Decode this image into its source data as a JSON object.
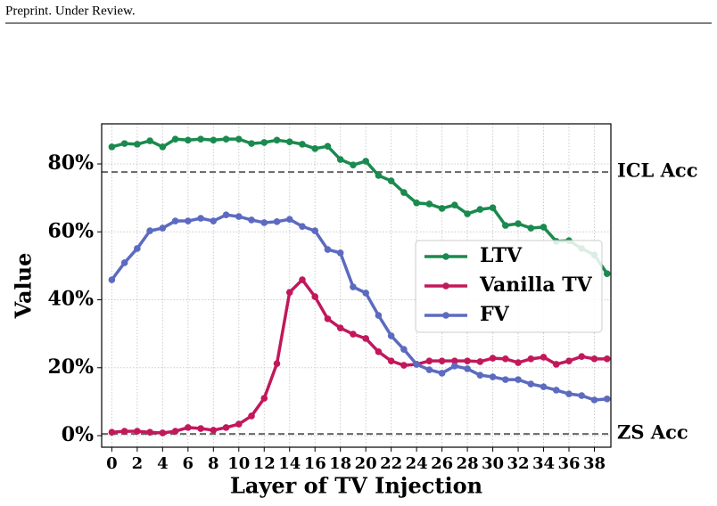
{
  "header": "Preprint. Under Review.",
  "chart_data": {
    "type": "line",
    "xlabel": "Layer of TV Injection",
    "ylabel": "Value",
    "x": [
      0,
      1,
      2,
      3,
      4,
      5,
      6,
      7,
      8,
      9,
      10,
      11,
      12,
      13,
      14,
      15,
      16,
      17,
      18,
      19,
      20,
      21,
      22,
      23,
      24,
      25,
      26,
      27,
      28,
      29,
      30,
      31,
      32,
      33,
      34,
      35,
      36,
      37,
      38,
      39
    ],
    "series": [
      {
        "name": "LTV",
        "color": "#1a8a4e",
        "values": [
          85,
          86,
          85.8,
          86.8,
          85,
          87.3,
          87,
          87.3,
          87,
          87.3,
          87.3,
          86,
          86.3,
          87,
          86.5,
          85.8,
          84.5,
          85.2,
          81.3,
          79.7,
          80.8,
          76.6,
          75,
          71.6,
          68.5,
          68.2,
          66.9,
          67.9,
          65.3,
          66.6,
          67.1,
          61.9,
          62.4,
          61.1,
          61.4,
          57.2,
          57.4,
          55.1,
          53.2,
          47.7
        ]
      },
      {
        "name": "Vanilla TV",
        "color": "#c2185b",
        "values": [
          1,
          1.3,
          1.3,
          1,
          0.8,
          1.3,
          2.4,
          2.1,
          1.6,
          2.4,
          3.4,
          5.8,
          11,
          21.2,
          42.2,
          45.9,
          40.9,
          34.4,
          31.7,
          29.9,
          28.6,
          24.7,
          22,
          20.7,
          21,
          22,
          22,
          22,
          22,
          21.8,
          22.8,
          22.6,
          21.5,
          22.6,
          23.1,
          21,
          22,
          23.3,
          22.6,
          22.6
        ]
      },
      {
        "name": "FV",
        "color": "#5c6bc0",
        "values": [
          45.9,
          50.9,
          55.1,
          60.3,
          61.1,
          63.2,
          63.2,
          64,
          63.2,
          65,
          64.5,
          63.5,
          62.7,
          63,
          63.7,
          61.6,
          60.3,
          54.8,
          53.8,
          43.8,
          42,
          35.4,
          29.4,
          25.4,
          21,
          19.4,
          18.4,
          20.5,
          19.7,
          17.8,
          17.3,
          16.5,
          16.5,
          15.2,
          14.4,
          13.4,
          12.3,
          11.8,
          10.5,
          10.8
        ]
      }
    ],
    "hlines": [
      {
        "value": 77.6,
        "label": "ICL Acc"
      },
      {
        "value": 0.5,
        "label": "ZS Acc"
      }
    ],
    "xlim": [
      -0.8,
      39.3
    ],
    "ylim": [
      -3.4,
      91.8
    ],
    "xticks": [
      0,
      2,
      4,
      6,
      8,
      10,
      12,
      14,
      16,
      18,
      20,
      22,
      24,
      26,
      28,
      30,
      32,
      34,
      36,
      38
    ],
    "yticks": [
      {
        "value": 0,
        "label": "0%"
      },
      {
        "value": 20,
        "label": "20%"
      },
      {
        "value": 40,
        "label": "40%"
      },
      {
        "value": 60,
        "label": "60%"
      },
      {
        "value": 80,
        "label": "80%"
      }
    ],
    "grid": true,
    "legend": "center right"
  }
}
